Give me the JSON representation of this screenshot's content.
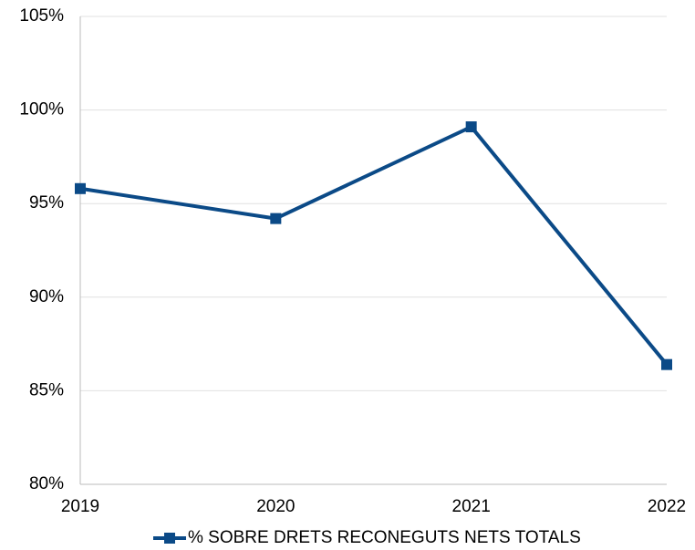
{
  "chart_data": {
    "type": "line",
    "categories": [
      "2019",
      "2020",
      "2021",
      "2022"
    ],
    "series": [
      {
        "name": "% SOBRE DRETS RECONEGUTS NETS TOTALS",
        "color": "#0b4a87",
        "values": [
          95.8,
          94.2,
          99.1,
          86.4
        ]
      }
    ],
    "ylim": [
      80,
      105
    ],
    "yticks": [
      {
        "value": 80,
        "label": "80%"
      },
      {
        "value": 85,
        "label": "85%"
      },
      {
        "value": 90,
        "label": "90%"
      },
      {
        "value": 95,
        "label": "95%"
      },
      {
        "value": 100,
        "label": "100%"
      },
      {
        "value": 105,
        "label": "105%"
      }
    ],
    "grid": true,
    "legend": "bottom"
  }
}
